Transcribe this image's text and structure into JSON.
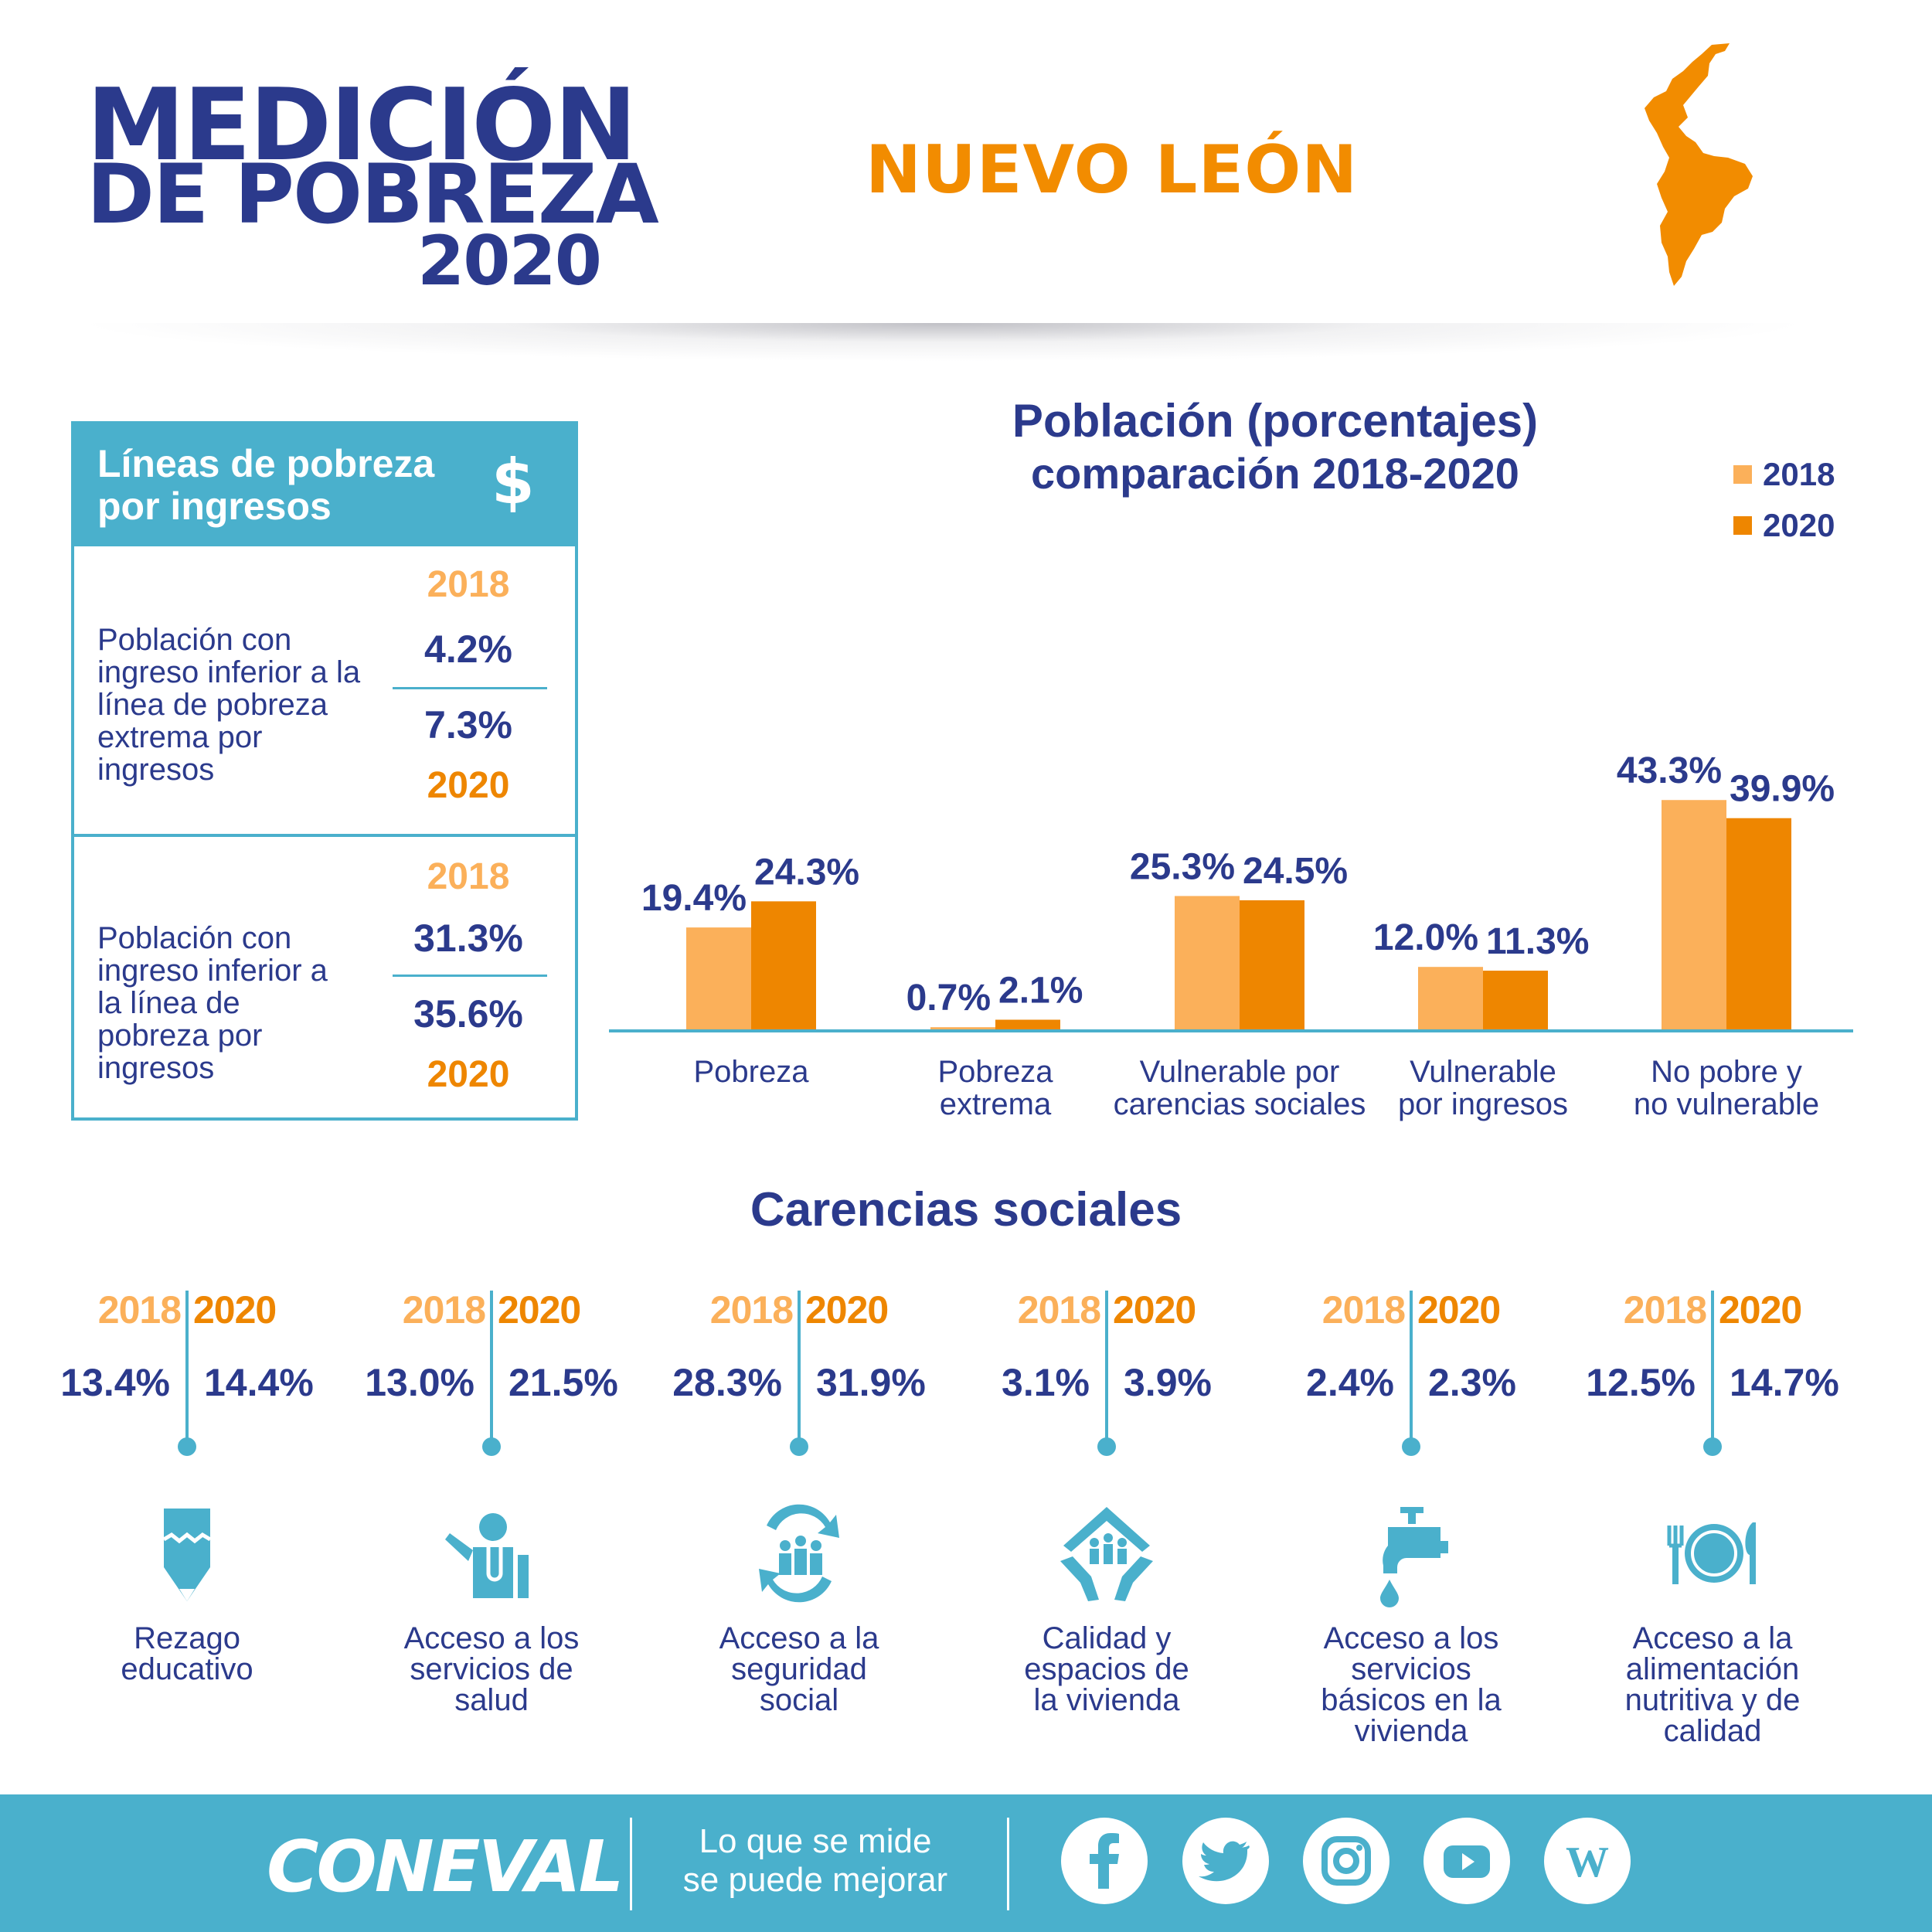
{
  "header": {
    "logo_line1": "MEDICIÓN",
    "logo_line2": "DE POBREZA",
    "logo_line3": "2020",
    "state": "NUEVO LEÓN"
  },
  "poverty_lines": {
    "title": "Líneas de pobreza por ingresos",
    "icon": "dollar-icon",
    "rows": [
      {
        "label": "Población con ingreso inferior a la línea de pobreza extrema por ingresos",
        "year_a": "2018",
        "value_a": "4.2%",
        "value_b": "7.3%",
        "year_b": "2020"
      },
      {
        "label": "Población con ingreso inferior a la línea de pobreza por ingresos",
        "year_a": "2018",
        "value_a": "31.3%",
        "value_b": "35.6%",
        "year_b": "2020"
      }
    ]
  },
  "chart_data": {
    "type": "bar",
    "title": "Población (porcentajes)",
    "subtitle": "comparación 2018-2020",
    "categories": [
      "Pobreza",
      "Pobreza extrema",
      "Vulnerable por carencias sociales",
      "Vulnerable por ingresos",
      "No pobre y no vulnerable"
    ],
    "category_lines": [
      [
        "Pobreza"
      ],
      [
        "Pobreza",
        "extrema"
      ],
      [
        "Vulnerable por",
        "carencias sociales"
      ],
      [
        "Vulnerable",
        "por ingresos"
      ],
      [
        "No pobre y",
        "no vulnerable"
      ]
    ],
    "series": [
      {
        "name": "2018",
        "values": [
          19.4,
          0.7,
          25.3,
          12.0,
          43.3
        ],
        "labels": [
          "19.4%",
          "0.7%",
          "25.3%",
          "12.0%",
          "43.3%"
        ]
      },
      {
        "name": "2020",
        "values": [
          24.3,
          2.1,
          24.5,
          11.3,
          39.9
        ],
        "labels": [
          "24.3%",
          "2.1%",
          "24.5%",
          "11.3%",
          "39.9%"
        ]
      }
    ],
    "ylim": [
      0,
      50
    ],
    "legend": "top-right",
    "grid": false
  },
  "colors": {
    "navy": "#2b3a8c",
    "orange_2018": "#fbb05a",
    "orange_2020": "#ee8600",
    "teal": "#4ab0cc"
  },
  "carencias": {
    "title": "Carencias sociales",
    "year_a": "2018",
    "year_b": "2020",
    "items": [
      {
        "value_a": "13.4%",
        "value_b": "14.4%",
        "label": "Rezago educativo",
        "label_lines": [
          "Rezago",
          "educativo"
        ],
        "icon": "pencil-icon"
      },
      {
        "value_a": "13.0%",
        "value_b": "21.5%",
        "label": "Acceso a los servicios de salud",
        "label_lines": [
          "Acceso a los",
          "servicios de",
          "salud"
        ],
        "icon": "doctor-icon"
      },
      {
        "value_a": "28.3%",
        "value_b": "31.9%",
        "label": "Acceso a la seguridad social",
        "label_lines": [
          "Acceso a la",
          "seguridad",
          "social"
        ],
        "icon": "social-security-icon"
      },
      {
        "value_a": "3.1%",
        "value_b": "3.9%",
        "label": "Calidad y espacios de la vivienda",
        "label_lines": [
          "Calidad y",
          "espacios de",
          "la vivienda"
        ],
        "icon": "house-hands-icon"
      },
      {
        "value_a": "2.4%",
        "value_b": "2.3%",
        "label": "Acceso a los servicios básicos en la vivienda",
        "label_lines": [
          "Acceso a los",
          "servicios",
          "básicos en la",
          "vivienda"
        ],
        "icon": "faucet-icon"
      },
      {
        "value_a": "12.5%",
        "value_b": "14.7%",
        "label": "Acceso a la alimentación nutritiva y de calidad",
        "label_lines": [
          "Acceso a la",
          "alimentación",
          "nutritiva y de",
          "calidad"
        ],
        "icon": "plate-cutlery-icon"
      }
    ]
  },
  "footer": {
    "brand": "CONEVAL",
    "slogan_line1": "Lo que se mide",
    "slogan_line2": "se puede mejorar",
    "social": [
      "facebook-icon",
      "twitter-icon",
      "instagram-icon",
      "youtube-icon",
      "wordpress-icon"
    ]
  }
}
